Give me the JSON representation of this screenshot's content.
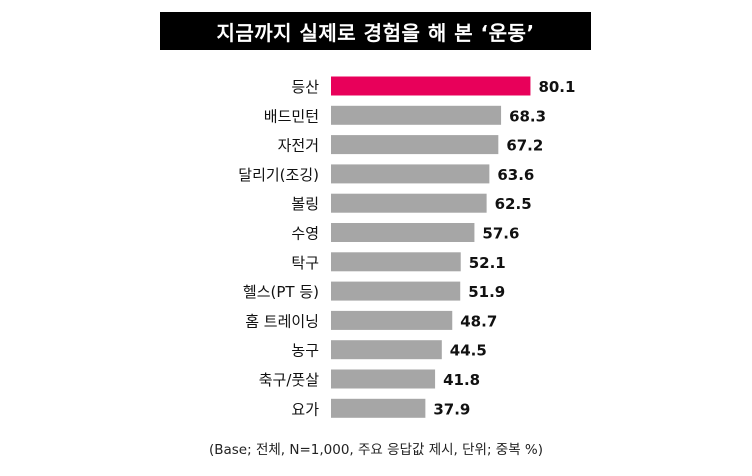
{
  "title": "지금까지 실제로 경험을 해 본 ‘운동’",
  "footnote": "(Base; 전체, N=1,000, 주요 응답값 제시, 단위; 중복 %)",
  "colors": {
    "highlight": "#e8005a",
    "bar": "#a6a6a6",
    "text": "#111111"
  },
  "chart_data": {
    "type": "bar",
    "orientation": "horizontal",
    "categories": [
      "등산",
      "배드민턴",
      "자전거",
      "달리기(조깅)",
      "볼링",
      "수영",
      "탁구",
      "헬스(PT 등)",
      "홈 트레이닝",
      "농구",
      "축구/풋살",
      "요가"
    ],
    "values": [
      80.1,
      68.3,
      67.2,
      63.6,
      62.5,
      57.6,
      52.1,
      51.9,
      48.7,
      44.5,
      41.8,
      37.9
    ],
    "value_labels": [
      "80.1",
      "68.3",
      "67.2",
      "63.6",
      "62.5",
      "57.6",
      "52.1",
      "51.9",
      "48.7",
      "44.5",
      "41.8",
      "37.9"
    ],
    "highlight_index": 0,
    "xlim": [
      0,
      100
    ],
    "grid": false,
    "legend": "none"
  }
}
